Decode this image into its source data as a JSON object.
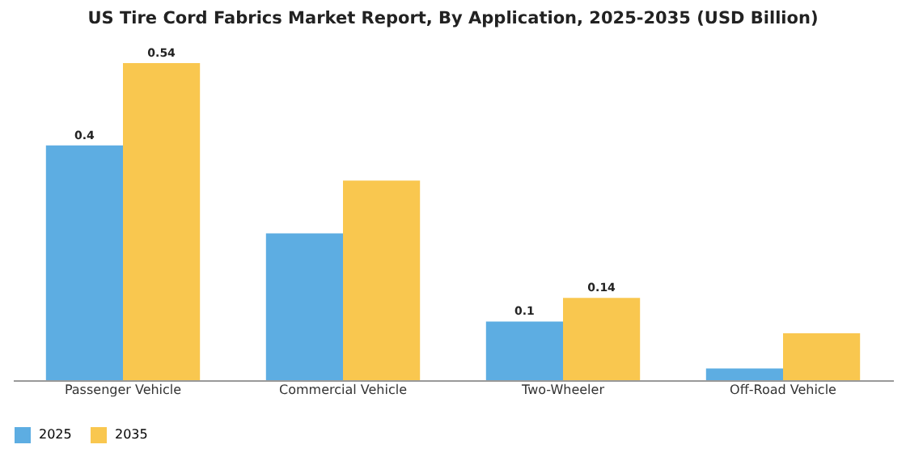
{
  "chart_data": {
    "type": "bar",
    "title": "US Tire Cord Fabrics Market Report, By Application, 2025-2035 (USD Billion)",
    "categories": [
      "Passenger Vehicle",
      "Commercial Vehicle",
      "Two-Wheeler",
      "Off-Road Vehicle"
    ],
    "series": [
      {
        "name": "2025",
        "color": "#5dade2",
        "values": [
          0.4,
          0.25,
          0.1,
          0.02
        ],
        "value_labels": [
          "0.4",
          null,
          "0.1",
          null
        ]
      },
      {
        "name": "2035",
        "color": "#f9c74f",
        "values": [
          0.54,
          0.34,
          0.14,
          0.08
        ],
        "value_labels": [
          "0.54",
          null,
          "0.14",
          null
        ]
      }
    ],
    "legend": "bottom",
    "grid": false
  }
}
